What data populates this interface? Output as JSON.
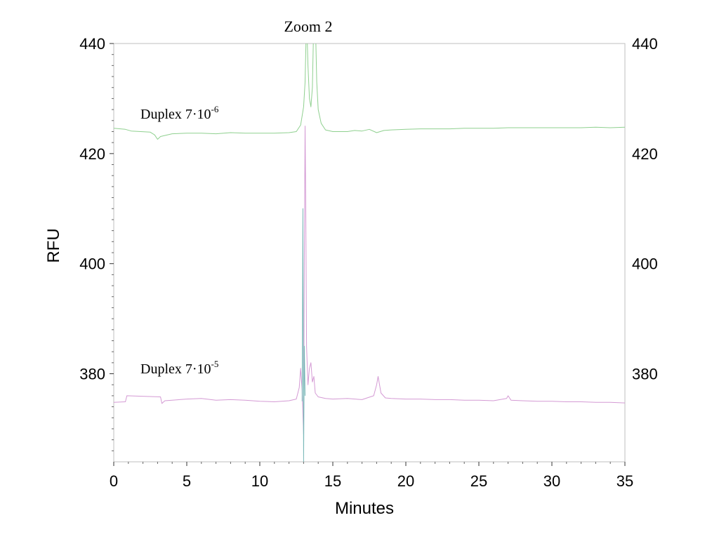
{
  "chart_data": {
    "type": "line",
    "title": "Zoom 2",
    "xlabel": "Minutes",
    "ylabel": "RFU",
    "xlim": [
      0,
      35
    ],
    "ylim": [
      364,
      440
    ],
    "xticks": [
      "0",
      "5",
      "10",
      "15",
      "20",
      "25",
      "30",
      "35"
    ],
    "yticks": [
      "380",
      "400",
      "420",
      "440"
    ],
    "grid": false,
    "annotations": [
      {
        "text": "Duplex 7·10",
        "sup": "-6"
      },
      {
        "text": "Duplex 7·10",
        "sup": "-5"
      }
    ],
    "series": [
      {
        "color": "#8fd08f",
        "x": [
          0,
          0.8,
          1.2,
          2.5,
          2.8,
          3.0,
          3.2,
          4,
          5,
          6,
          7,
          8,
          9,
          10,
          11,
          12,
          12.5,
          12.8,
          13.0,
          13.1,
          13.2,
          13.3,
          13.4,
          13.5,
          13.6,
          13.7,
          13.8,
          13.9,
          14.0,
          14.2,
          14.5,
          15,
          16,
          16.5,
          17,
          17.5,
          18,
          18.5,
          19,
          20,
          21,
          22,
          23,
          24,
          25,
          26,
          27,
          28,
          29,
          30,
          31,
          32,
          33,
          34,
          35
        ],
        "y": [
          424.6,
          424.4,
          424.1,
          423.9,
          423.4,
          422.6,
          423.1,
          423.6,
          423.7,
          423.7,
          423.6,
          423.8,
          423.7,
          423.7,
          423.7,
          423.8,
          424.0,
          425.2,
          428.5,
          433.0,
          445.0,
          436.0,
          430.0,
          428.5,
          432.0,
          445.0,
          445.0,
          433.0,
          428.0,
          425.5,
          424.3,
          424.0,
          424.0,
          424.2,
          424.1,
          424.4,
          423.8,
          424.2,
          424.3,
          424.4,
          424.5,
          424.5,
          424.5,
          424.6,
          424.6,
          424.6,
          424.7,
          424.7,
          424.7,
          424.7,
          424.7,
          424.7,
          424.8,
          424.7,
          424.8
        ]
      },
      {
        "color": "#d49ad4",
        "x": [
          0,
          0.8,
          0.9,
          3.2,
          3.3,
          3.5,
          4.5,
          5,
          6,
          7,
          8,
          9,
          10,
          11,
          12,
          12.5,
          12.7,
          12.8,
          12.9,
          13.0,
          13.05,
          13.1,
          13.15,
          13.2,
          13.3,
          13.4,
          13.5,
          13.6,
          13.7,
          13.8,
          14.0,
          14.5,
          15,
          16,
          17,
          17.8,
          18.0,
          18.1,
          18.3,
          18.6,
          19,
          20,
          21,
          22,
          23,
          24,
          25,
          26,
          26.9,
          27.0,
          27.2,
          28,
          29,
          30,
          31,
          32,
          33,
          34,
          35
        ],
        "y": [
          374.8,
          374.9,
          376.0,
          375.8,
          374.6,
          375.1,
          375.3,
          375.4,
          375.5,
          375.2,
          375.3,
          375.2,
          375.0,
          374.9,
          375.1,
          375.4,
          377.5,
          381.0,
          377.0,
          369.0,
          400.0,
          425.0,
          410.0,
          385.0,
          378.0,
          381.0,
          382.0,
          378.5,
          379.5,
          376.5,
          375.8,
          375.5,
          375.4,
          375.5,
          375.3,
          376.0,
          378.0,
          379.5,
          376.5,
          375.6,
          375.5,
          375.4,
          375.4,
          375.3,
          375.3,
          375.2,
          375.2,
          375.1,
          375.5,
          376.0,
          375.2,
          375.1,
          375.0,
          375.0,
          374.9,
          374.9,
          374.8,
          374.8,
          374.7
        ]
      },
      {
        "color": "#7ab8b8",
        "x": [
          12.9,
          12.95,
          13.0,
          13.05,
          13.1
        ],
        "y": [
          375.0,
          410.0,
          364.0,
          385.0,
          376.0
        ]
      }
    ]
  }
}
